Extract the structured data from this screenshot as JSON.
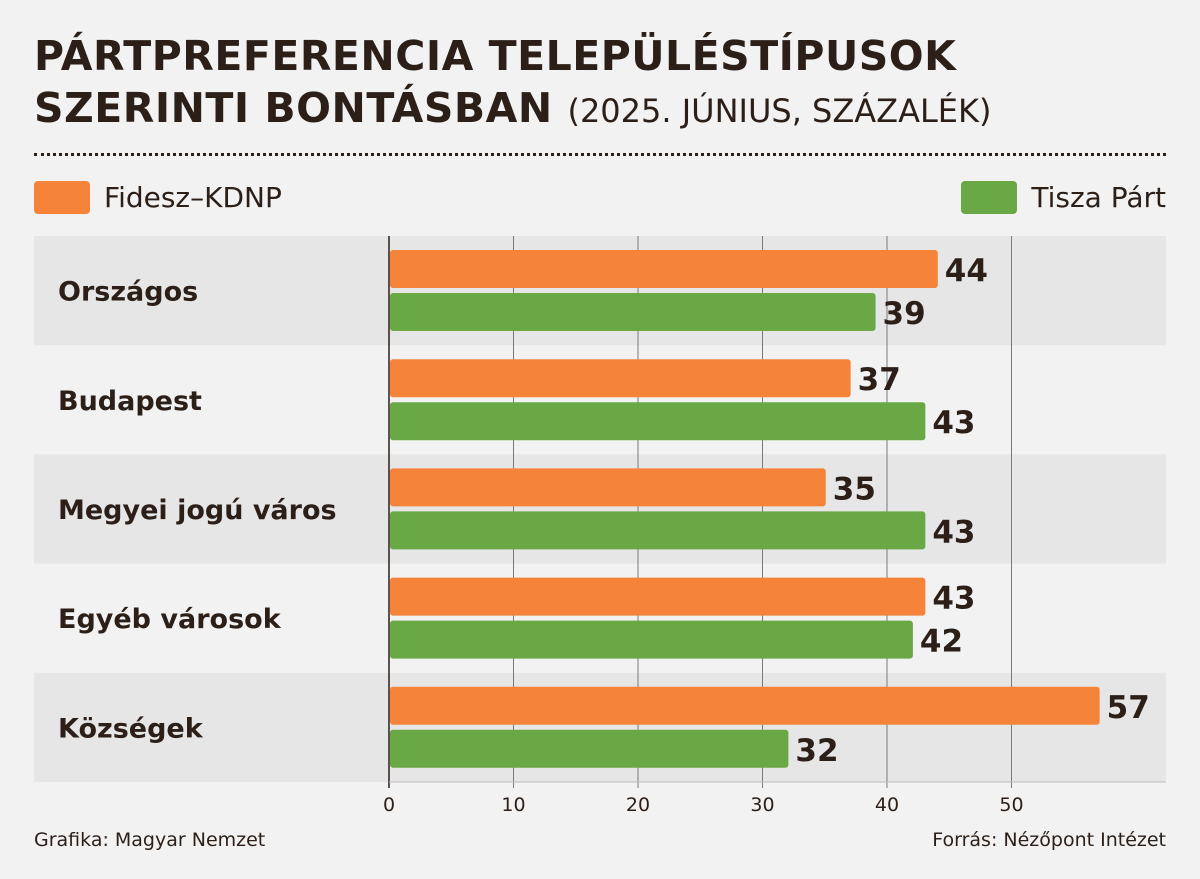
{
  "title": {
    "main": "PÁRTPREFERENCIA TELEPÜLÉSTÍPUSOK SZERINTI BONTÁSBAN",
    "subtitle": "(2025. JÚNIUS, SZÁZALÉK)"
  },
  "legend": {
    "fidesz": "Fidesz–KDNP",
    "tisza": "Tisza Párt"
  },
  "colors": {
    "fidesz": "#f5833a",
    "tisza": "#6aa845",
    "band": "#e6e6e6",
    "background": "#f2f2f2",
    "text": "#2b1f18"
  },
  "chart_data": {
    "type": "bar",
    "orientation": "horizontal",
    "categories": [
      "Országos",
      "Budapest",
      "Megyei jogú város",
      "Egyéb városok",
      "Községek"
    ],
    "series": [
      {
        "name": "Fidesz–KDNP",
        "values": [
          44,
          37,
          35,
          43,
          57
        ]
      },
      {
        "name": "Tisza Párt",
        "values": [
          39,
          43,
          43,
          42,
          32
        ]
      }
    ],
    "xticks": [
      0,
      10,
      20,
      30,
      40,
      50
    ],
    "xlim": [
      0,
      62
    ],
    "grid": true,
    "legend": "top"
  },
  "footer": {
    "left": "Grafika: Magyar Nemzet",
    "right": "Forrás: Nézőpont Intézet"
  }
}
